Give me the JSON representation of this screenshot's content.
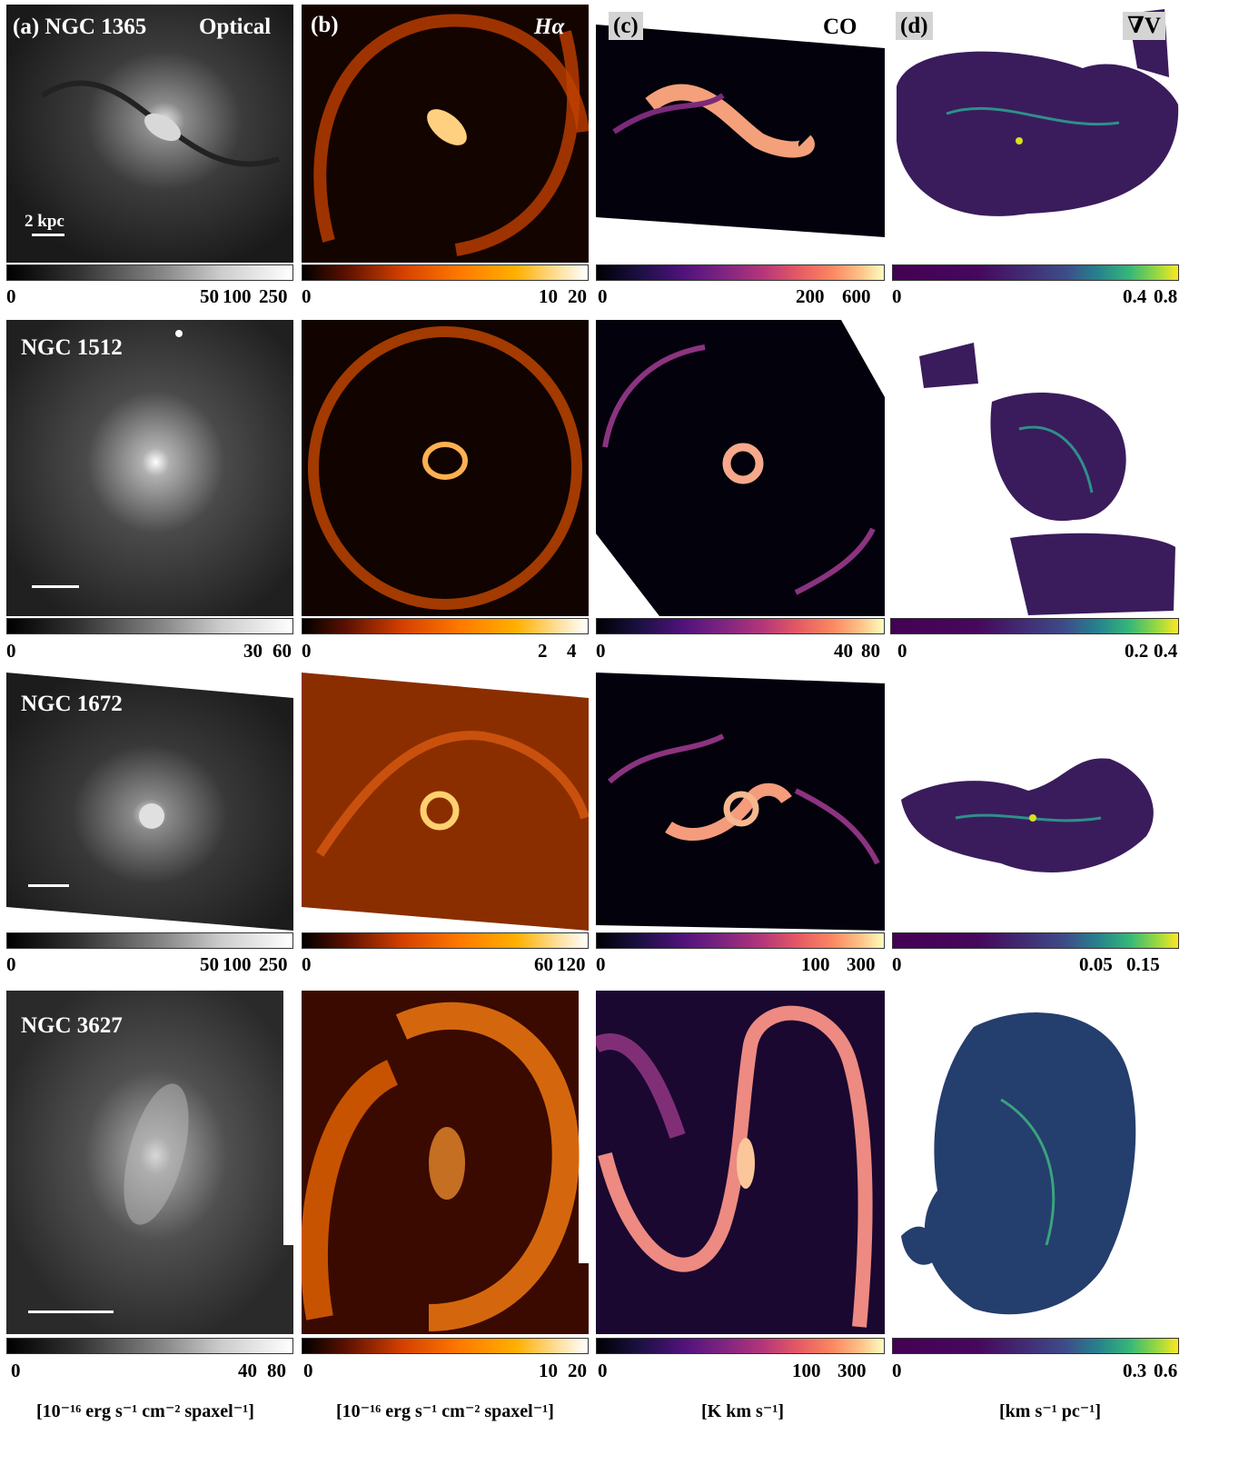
{
  "column_titles": {
    "a_label": "(a)",
    "a_name": "NGC 1365",
    "a_kind": "Optical",
    "b_label": "(b)",
    "b_kind": "Hα",
    "c_label": "(c)",
    "c_kind": "CO",
    "d_label": "(d)",
    "d_kind": "∇V"
  },
  "scalebar_text": "2 kpc",
  "rows": [
    {
      "galaxy": "NGC 1365",
      "ticks": {
        "optical": [
          "0",
          "50",
          "100",
          "250"
        ],
        "halpha": [
          "0",
          "10",
          "20"
        ],
        "co": [
          "0",
          "200",
          "600"
        ],
        "gradv": [
          "0",
          "0.4",
          "0.8"
        ]
      }
    },
    {
      "galaxy": "NGC 1512",
      "ticks": {
        "optical": [
          "0",
          "30",
          "60"
        ],
        "halpha": [
          "0",
          "2",
          "4"
        ],
        "co": [
          "0",
          "40",
          "80"
        ],
        "gradv": [
          "0",
          "0.2",
          "0.4"
        ]
      }
    },
    {
      "galaxy": "NGC 1672",
      "ticks": {
        "optical": [
          "0",
          "50",
          "100",
          "250"
        ],
        "halpha": [
          "0",
          "60",
          "120"
        ],
        "co": [
          "0",
          "100",
          "300"
        ],
        "gradv": [
          "0",
          "0.05",
          "0.15"
        ]
      }
    },
    {
      "galaxy": "NGC 3627",
      "ticks": {
        "optical": [
          "0",
          "40",
          "80"
        ],
        "halpha": [
          "0",
          "10",
          "20"
        ],
        "co": [
          "0",
          "100",
          "300"
        ],
        "gradv": [
          "0",
          "0.3",
          "0.6"
        ]
      }
    }
  ],
  "units": {
    "optical": "[10⁻¹⁶ erg s⁻¹ cm⁻² spaxel⁻¹]",
    "halpha": "[10⁻¹⁶ erg s⁻¹ cm⁻² spaxel⁻¹]",
    "co": "[K km s⁻¹]",
    "gradv": "[km s⁻¹ pc⁻¹]"
  },
  "colormaps": {
    "optical": "gray",
    "halpha": "hot",
    "co": "magma",
    "gradv": "viridis"
  }
}
